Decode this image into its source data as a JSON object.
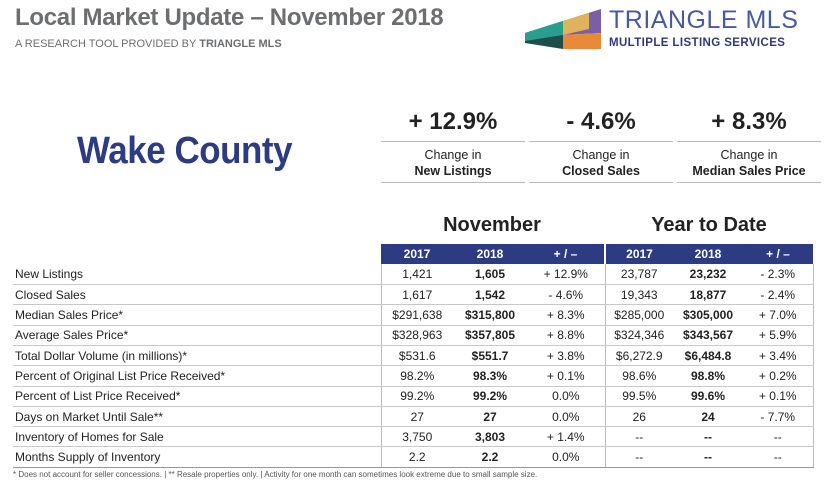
{
  "header": {
    "title": "Local Market Update – November 2018",
    "subtitle_prefix": "A RESEARCH TOOL PROVIDED BY ",
    "subtitle_brand": "TRIANGLE MLS"
  },
  "logo": {
    "name": "TRIANGLE MLS",
    "tagline": "MULTIPLE LISTING SERVICES"
  },
  "county": "Wake County",
  "kpis": [
    {
      "value": "+ 12.9%",
      "line1": "Change in",
      "line2": "New Listings"
    },
    {
      "value": "- 4.6%",
      "line1": "Change in",
      "line2": "Closed Sales"
    },
    {
      "value": "+ 8.3%",
      "line1": "Change in",
      "line2": "Median Sales Price"
    }
  ],
  "sections": {
    "month": "November",
    "ytd": "Year to Date"
  },
  "columns": [
    "2017",
    "2018",
    "+ / –",
    "2017",
    "2018",
    "+ / –"
  ],
  "rows": [
    {
      "label": "New Listings",
      "m17": "1,421",
      "m18": "1,605",
      "mchg": "+ 12.9%",
      "y17": "23,787",
      "y18": "23,232",
      "ychg": "- 2.3%"
    },
    {
      "label": "Closed Sales",
      "m17": "1,617",
      "m18": "1,542",
      "mchg": "- 4.6%",
      "y17": "19,343",
      "y18": "18,877",
      "ychg": "- 2.4%"
    },
    {
      "label": "Median Sales Price*",
      "m17": "$291,638",
      "m18": "$315,800",
      "mchg": "+ 8.3%",
      "y17": "$285,000",
      "y18": "$305,000",
      "ychg": "+ 7.0%"
    },
    {
      "label": "Average Sales Price*",
      "m17": "$328,963",
      "m18": "$357,805",
      "mchg": "+ 8.8%",
      "y17": "$324,346",
      "y18": "$343,567",
      "ychg": "+ 5.9%"
    },
    {
      "label": "Total Dollar Volume (in millions)*",
      "m17": "$531.6",
      "m18": "$551.7",
      "mchg": "+ 3.8%",
      "y17": "$6,272.9",
      "y18": "$6,484.8",
      "ychg": "+ 3.4%"
    },
    {
      "label": "Percent of Original List Price Received*",
      "m17": "98.2%",
      "m18": "98.3%",
      "mchg": "+ 0.1%",
      "y17": "98.6%",
      "y18": "98.8%",
      "ychg": "+ 0.2%"
    },
    {
      "label": "Percent of List Price Received*",
      "m17": "99.2%",
      "m18": "99.2%",
      "mchg": "0.0%",
      "y17": "99.5%",
      "y18": "99.6%",
      "ychg": "+ 0.1%"
    },
    {
      "label": "Days on Market Until Sale**",
      "m17": "27",
      "m18": "27",
      "mchg": "0.0%",
      "y17": "26",
      "y18": "24",
      "ychg": "- 7.7%"
    },
    {
      "label": "Inventory of Homes for Sale",
      "m17": "3,750",
      "m18": "3,803",
      "mchg": "+ 1.4%",
      "y17": "--",
      "y18": "--",
      "ychg": "--"
    },
    {
      "label": "Months Supply of Inventory",
      "m17": "2.2",
      "m18": "2.2",
      "mchg": "0.0%",
      "y17": "--",
      "y18": "--",
      "ychg": "--"
    }
  ],
  "footnote": "* Does not account for seller concessions.  |  ** Resale properties only.  |  Activity for one month can sometimes look extreme due to small sample size.",
  "colors": {
    "navy": "#2c3b82",
    "gray_title": "#6d6e71",
    "logo_teal": "#2a9d8f",
    "logo_purple": "#7b5ea7",
    "logo_orange": "#e98a3a",
    "logo_yellow": "#f2c14e",
    "logo_dark": "#1f4e4a"
  }
}
